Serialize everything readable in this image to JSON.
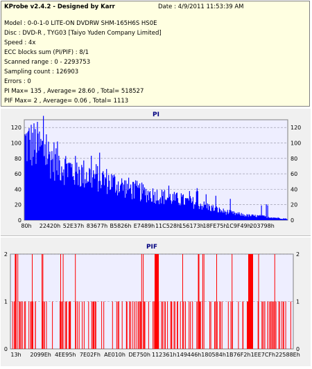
{
  "info": {
    "title": "KProbe v2.4.2 - Designed by Karr",
    "date": "Date : 4/9/2011 11:53:39 AM",
    "lines": [
      "Model : 0-0-1-0 LITE-ON DVDRW SHM-165H6S HS0E",
      "Disc : DVD-R , TYG03 [Taiyo Yuden Company Limited]",
      "Speed : 4x",
      "ECC blocks sum (PI/PIF) : 8/1",
      "Scanned range : 0 - 2293753",
      "Sampling count : 126903",
      "Errors : 0",
      "PI Max= 135 , Average= 28.60 , Total= 518527",
      "PIF Max= 2 , Average= 0.06 , Total= 1113"
    ]
  },
  "chart_data": [
    {
      "type": "area",
      "title": "PI",
      "ylim": [
        0,
        130
      ],
      "yticks": [
        "0",
        "20",
        "40",
        "60",
        "80",
        "100",
        "120"
      ],
      "xticks": [
        "80h",
        "22420h",
        "52E37h",
        "83677h",
        "B5826h",
        "E7489h",
        "11C528h",
        "156173h",
        "18FE75h",
        "1C9F49h",
        "203798h"
      ],
      "color": "#0000ff",
      "x_range": [
        0,
        2293753
      ],
      "profile": [
        [
          0,
          118
        ],
        [
          0.05,
          112
        ],
        [
          0.1,
          95
        ],
        [
          0.15,
          82
        ],
        [
          0.2,
          72
        ],
        [
          0.25,
          68
        ],
        [
          0.3,
          62
        ],
        [
          0.35,
          55
        ],
        [
          0.4,
          48
        ],
        [
          0.45,
          42
        ],
        [
          0.5,
          38
        ],
        [
          0.55,
          34
        ],
        [
          0.6,
          30
        ],
        [
          0.65,
          26
        ],
        [
          0.7,
          20
        ],
        [
          0.75,
          14
        ],
        [
          0.8,
          10
        ],
        [
          0.85,
          7
        ],
        [
          0.9,
          6
        ],
        [
          0.95,
          4
        ],
        [
          1,
          2
        ]
      ],
      "spike_max": 135
    },
    {
      "type": "bar",
      "title": "PIF",
      "ylim": [
        0,
        2
      ],
      "yticks": [
        "0",
        "1",
        "2"
      ],
      "xticks": [
        "13h",
        "2099Eh",
        "4EE95h",
        "7E02Fh",
        "AE010h",
        "DE750h",
        "112361h",
        "149446h",
        "180584h",
        "1B76F2h",
        "1EE7CFh",
        "22588Eh"
      ],
      "color": "#ff0000",
      "max": 2
    }
  ]
}
